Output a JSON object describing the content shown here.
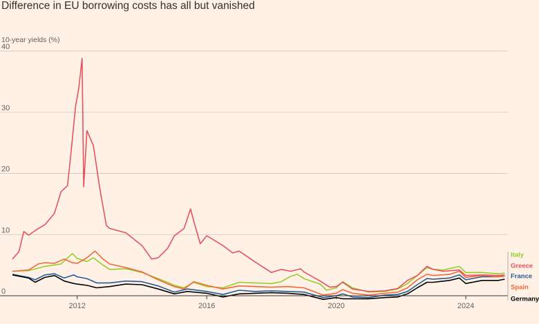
{
  "title": "Difference in EU borrowing costs has all but vanished",
  "chart_data": {
    "type": "line",
    "title": "Difference in EU borrowing costs has all but vanished",
    "ylabel": "10-year yields (%)",
    "xlabel": "",
    "xlim": [
      2010.0,
      2025.3
    ],
    "ylim": [
      0,
      40
    ],
    "yticks": [
      0,
      10,
      20,
      30,
      40
    ],
    "xticks": [
      2012,
      2016,
      2020,
      2024
    ],
    "grid": true,
    "legend_placement": "right, end of lines",
    "series": [
      {
        "name": "Italy",
        "color": "#96CC28",
        "points": [
          [
            2010.0,
            4.0
          ],
          [
            2010.5,
            4.1
          ],
          [
            2011.0,
            4.8
          ],
          [
            2011.5,
            5.2
          ],
          [
            2011.85,
            6.9
          ],
          [
            2012.0,
            6.1
          ],
          [
            2012.3,
            5.6
          ],
          [
            2012.5,
            6.2
          ],
          [
            2012.8,
            5.0
          ],
          [
            2013.0,
            4.3
          ],
          [
            2013.5,
            4.4
          ],
          [
            2014.0,
            3.8
          ],
          [
            2014.5,
            2.8
          ],
          [
            2015.0,
            1.7
          ],
          [
            2015.3,
            1.3
          ],
          [
            2015.6,
            2.2
          ],
          [
            2016.0,
            1.5
          ],
          [
            2016.5,
            1.3
          ],
          [
            2017.0,
            2.2
          ],
          [
            2017.5,
            2.1
          ],
          [
            2018.0,
            2.0
          ],
          [
            2018.3,
            2.3
          ],
          [
            2018.6,
            3.2
          ],
          [
            2018.8,
            3.5
          ],
          [
            2019.0,
            2.8
          ],
          [
            2019.5,
            1.9
          ],
          [
            2019.7,
            0.9
          ],
          [
            2020.0,
            1.3
          ],
          [
            2020.2,
            2.3
          ],
          [
            2020.5,
            1.3
          ],
          [
            2021.0,
            0.6
          ],
          [
            2021.5,
            0.7
          ],
          [
            2021.9,
            1.1
          ],
          [
            2022.2,
            2.0
          ],
          [
            2022.5,
            3.3
          ],
          [
            2022.8,
            4.6
          ],
          [
            2023.0,
            4.3
          ],
          [
            2023.3,
            4.2
          ],
          [
            2023.8,
            4.8
          ],
          [
            2024.0,
            3.8
          ],
          [
            2024.5,
            3.8
          ],
          [
            2025.0,
            3.6
          ],
          [
            2025.2,
            3.7
          ]
        ]
      },
      {
        "name": "Greece",
        "color": "#E5525F",
        "points": [
          [
            2010.0,
            6.0
          ],
          [
            2010.2,
            7.2
          ],
          [
            2010.35,
            10.5
          ],
          [
            2010.5,
            9.9
          ],
          [
            2010.8,
            11.0
          ],
          [
            2011.0,
            11.6
          ],
          [
            2011.3,
            13.5
          ],
          [
            2011.5,
            17.0
          ],
          [
            2011.7,
            18.0
          ],
          [
            2011.8,
            23.0
          ],
          [
            2011.95,
            31.0
          ],
          [
            2012.05,
            34.0
          ],
          [
            2012.15,
            38.8
          ],
          [
            2012.2,
            17.8
          ],
          [
            2012.3,
            27.0
          ],
          [
            2012.5,
            24.5
          ],
          [
            2012.7,
            17.5
          ],
          [
            2012.9,
            11.5
          ],
          [
            2013.0,
            11.0
          ],
          [
            2013.5,
            10.3
          ],
          [
            2014.0,
            8.2
          ],
          [
            2014.3,
            6.0
          ],
          [
            2014.5,
            6.2
          ],
          [
            2014.8,
            7.8
          ],
          [
            2015.0,
            9.8
          ],
          [
            2015.3,
            11.0
          ],
          [
            2015.5,
            14.2
          ],
          [
            2015.6,
            12.2
          ],
          [
            2015.8,
            8.5
          ],
          [
            2016.0,
            9.8
          ],
          [
            2016.5,
            8.2
          ],
          [
            2016.8,
            7.0
          ],
          [
            2017.0,
            7.3
          ],
          [
            2017.5,
            5.5
          ],
          [
            2018.0,
            3.8
          ],
          [
            2018.3,
            4.3
          ],
          [
            2018.6,
            4.0
          ],
          [
            2018.9,
            4.4
          ],
          [
            2019.0,
            3.9
          ],
          [
            2019.5,
            2.4
          ],
          [
            2019.8,
            1.4
          ],
          [
            2020.0,
            1.5
          ],
          [
            2020.2,
            2.2
          ],
          [
            2020.5,
            1.1
          ],
          [
            2021.0,
            0.7
          ],
          [
            2021.5,
            0.8
          ],
          [
            2021.9,
            1.2
          ],
          [
            2022.2,
            2.5
          ],
          [
            2022.5,
            3.3
          ],
          [
            2022.8,
            4.8
          ],
          [
            2023.0,
            4.3
          ],
          [
            2023.3,
            4.0
          ],
          [
            2023.8,
            4.2
          ],
          [
            2024.0,
            3.3
          ],
          [
            2024.5,
            3.4
          ],
          [
            2025.0,
            3.3
          ],
          [
            2025.2,
            3.4
          ]
        ]
      },
      {
        "name": "France",
        "color": "#1F5C99",
        "points": [
          [
            2010.0,
            3.5
          ],
          [
            2010.5,
            3.0
          ],
          [
            2010.7,
            2.6
          ],
          [
            2011.0,
            3.4
          ],
          [
            2011.3,
            3.6
          ],
          [
            2011.6,
            2.9
          ],
          [
            2011.9,
            3.4
          ],
          [
            2012.0,
            3.1
          ],
          [
            2012.3,
            2.8
          ],
          [
            2012.6,
            2.1
          ],
          [
            2013.0,
            2.1
          ],
          [
            2013.5,
            2.4
          ],
          [
            2014.0,
            2.3
          ],
          [
            2014.5,
            1.6
          ],
          [
            2015.0,
            0.6
          ],
          [
            2015.4,
            1.1
          ],
          [
            2016.0,
            0.7
          ],
          [
            2016.5,
            0.2
          ],
          [
            2017.0,
            0.9
          ],
          [
            2017.5,
            0.7
          ],
          [
            2018.0,
            0.8
          ],
          [
            2018.5,
            0.7
          ],
          [
            2019.0,
            0.6
          ],
          [
            2019.6,
            -0.3
          ],
          [
            2020.0,
            0.0
          ],
          [
            2020.2,
            0.3
          ],
          [
            2020.5,
            -0.2
          ],
          [
            2021.0,
            -0.3
          ],
          [
            2021.5,
            0.1
          ],
          [
            2021.9,
            0.2
          ],
          [
            2022.2,
            0.7
          ],
          [
            2022.5,
            1.8
          ],
          [
            2022.8,
            2.8
          ],
          [
            2023.0,
            2.7
          ],
          [
            2023.5,
            2.9
          ],
          [
            2023.8,
            3.4
          ],
          [
            2024.0,
            2.6
          ],
          [
            2024.5,
            3.1
          ],
          [
            2025.0,
            3.1
          ],
          [
            2025.2,
            3.2
          ]
        ]
      },
      {
        "name": "Spain",
        "color": "#F2683C",
        "points": [
          [
            2010.0,
            4.0
          ],
          [
            2010.5,
            4.2
          ],
          [
            2010.8,
            5.2
          ],
          [
            2011.0,
            5.4
          ],
          [
            2011.3,
            5.3
          ],
          [
            2011.6,
            6.0
          ],
          [
            2011.85,
            5.4
          ],
          [
            2012.0,
            5.3
          ],
          [
            2012.3,
            6.2
          ],
          [
            2012.55,
            7.3
          ],
          [
            2012.8,
            6.0
          ],
          [
            2013.0,
            5.2
          ],
          [
            2013.5,
            4.6
          ],
          [
            2014.0,
            3.9
          ],
          [
            2014.5,
            2.6
          ],
          [
            2015.0,
            1.5
          ],
          [
            2015.3,
            1.1
          ],
          [
            2015.6,
            2.3
          ],
          [
            2016.0,
            1.7
          ],
          [
            2016.5,
            1.1
          ],
          [
            2017.0,
            1.6
          ],
          [
            2017.5,
            1.5
          ],
          [
            2018.0,
            1.4
          ],
          [
            2018.5,
            1.5
          ],
          [
            2019.0,
            1.3
          ],
          [
            2019.6,
            0.1
          ],
          [
            2020.0,
            0.4
          ],
          [
            2020.2,
            1.0
          ],
          [
            2020.5,
            0.4
          ],
          [
            2021.0,
            0.1
          ],
          [
            2021.5,
            0.4
          ],
          [
            2021.9,
            0.6
          ],
          [
            2022.2,
            1.3
          ],
          [
            2022.5,
            2.6
          ],
          [
            2022.8,
            3.5
          ],
          [
            2023.0,
            3.3
          ],
          [
            2023.5,
            3.5
          ],
          [
            2023.8,
            4.0
          ],
          [
            2024.0,
            3.0
          ],
          [
            2024.5,
            3.3
          ],
          [
            2025.0,
            3.1
          ],
          [
            2025.2,
            3.2
          ]
        ]
      },
      {
        "name": "Germany",
        "color": "#000000",
        "points": [
          [
            2010.0,
            3.4
          ],
          [
            2010.5,
            2.9
          ],
          [
            2010.7,
            2.2
          ],
          [
            2011.0,
            3.0
          ],
          [
            2011.3,
            3.3
          ],
          [
            2011.6,
            2.4
          ],
          [
            2011.9,
            2.0
          ],
          [
            2012.0,
            1.9
          ],
          [
            2012.3,
            1.7
          ],
          [
            2012.6,
            1.3
          ],
          [
            2013.0,
            1.5
          ],
          [
            2013.5,
            1.9
          ],
          [
            2014.0,
            1.8
          ],
          [
            2014.5,
            1.1
          ],
          [
            2015.0,
            0.3
          ],
          [
            2015.4,
            0.7
          ],
          [
            2016.0,
            0.4
          ],
          [
            2016.5,
            -0.2
          ],
          [
            2017.0,
            0.3
          ],
          [
            2017.5,
            0.4
          ],
          [
            2018.0,
            0.5
          ],
          [
            2018.5,
            0.4
          ],
          [
            2019.0,
            0.2
          ],
          [
            2019.6,
            -0.6
          ],
          [
            2020.0,
            -0.3
          ],
          [
            2020.2,
            -0.5
          ],
          [
            2020.5,
            -0.5
          ],
          [
            2021.0,
            -0.5
          ],
          [
            2021.5,
            -0.3
          ],
          [
            2021.9,
            -0.2
          ],
          [
            2022.2,
            0.3
          ],
          [
            2022.5,
            1.3
          ],
          [
            2022.8,
            2.2
          ],
          [
            2023.0,
            2.2
          ],
          [
            2023.5,
            2.5
          ],
          [
            2023.8,
            2.9
          ],
          [
            2024.0,
            2.0
          ],
          [
            2024.5,
            2.5
          ],
          [
            2025.0,
            2.5
          ],
          [
            2025.2,
            2.7
          ]
        ]
      }
    ]
  }
}
